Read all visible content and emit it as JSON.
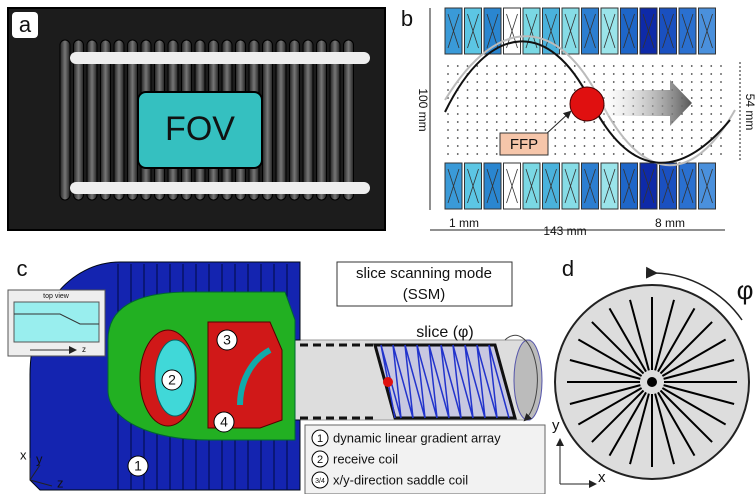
{
  "panels": {
    "a": {
      "label": "a",
      "fov": "FOV"
    },
    "b": {
      "label": "b",
      "height": "100 mm",
      "ffp_height": "54 mm",
      "ffp": "FFP",
      "gap": "1 mm",
      "length": "143 mm",
      "coil_width": "8 mm"
    },
    "c": {
      "label": "c",
      "mode": [
        "slice scanning mode",
        "(SSM)"
      ],
      "slice": "slice (φ)",
      "inset_title": "top view",
      "inset_axis": "z",
      "parts": [
        "1",
        "2",
        "3",
        "4"
      ],
      "legend": [
        {
          "marker": "1",
          "text": "dynamic linear gradient array"
        },
        {
          "marker": "2",
          "text": "receive coil"
        },
        {
          "marker": "3/4",
          "text": "x/y-direction saddle coil"
        }
      ],
      "axes": [
        "x",
        "y",
        "z"
      ]
    },
    "d": {
      "label": "d",
      "angle": "φ",
      "axes": [
        "y",
        "x"
      ]
    }
  }
}
